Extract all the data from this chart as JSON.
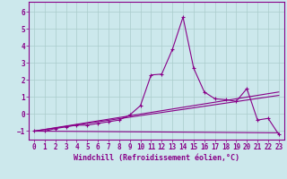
{
  "title": "",
  "xlabel": "Windchill (Refroidissement éolien,°C)",
  "ylabel": "",
  "background_color": "#cce8ec",
  "line_color": "#880088",
  "grid_color": "#aacccc",
  "xlim": [
    -0.5,
    23.5
  ],
  "ylim": [
    -1.5,
    6.6
  ],
  "yticks": [
    -1,
    0,
    1,
    2,
    3,
    4,
    5,
    6
  ],
  "xticks": [
    0,
    1,
    2,
    3,
    4,
    5,
    6,
    7,
    8,
    9,
    10,
    11,
    12,
    13,
    14,
    15,
    16,
    17,
    18,
    19,
    20,
    21,
    22,
    23
  ],
  "series1_x": [
    0,
    1,
    2,
    3,
    4,
    5,
    6,
    7,
    8,
    9,
    10,
    11,
    12,
    13,
    14,
    15,
    16,
    17,
    18,
    19,
    20,
    21,
    22,
    23
  ],
  "series1_y": [
    -1.0,
    -1.0,
    -0.85,
    -0.75,
    -0.65,
    -0.65,
    -0.55,
    -0.45,
    -0.35,
    -0.05,
    0.5,
    2.3,
    2.35,
    3.8,
    5.7,
    2.7,
    1.3,
    0.9,
    0.85,
    0.75,
    1.5,
    -0.35,
    -0.25,
    -1.2
  ],
  "series2_x": [
    0,
    23
  ],
  "series2_y": [
    -1.0,
    -1.1
  ],
  "series3_x": [
    0,
    23
  ],
  "series3_y": [
    -1.0,
    1.1
  ],
  "series4_x": [
    0,
    23
  ],
  "series4_y": [
    -1.0,
    1.3
  ]
}
